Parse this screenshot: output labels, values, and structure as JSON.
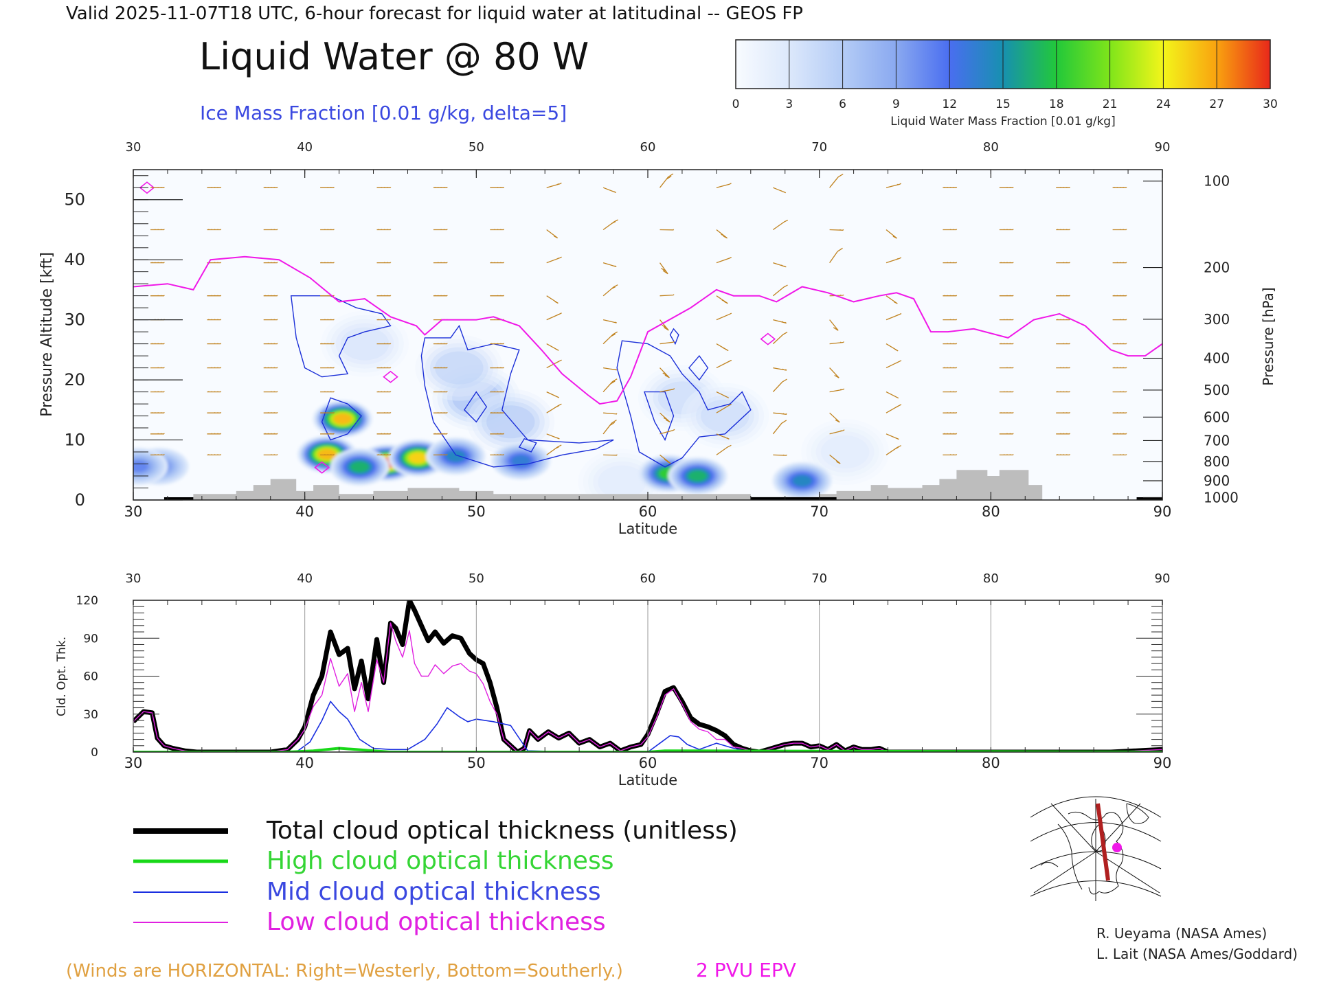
{
  "header": {
    "valid_line": "Valid 2025-11-07T18 UTC, 6-hour forecast for liquid water at latitudinal -- GEOS FP",
    "main_title": "Liquid Water @ 80 W",
    "ice_label": "Ice Mass Fraction [0.01 g/kg, delta=5]"
  },
  "colorbar": {
    "ticks": [
      "0",
      "3",
      "6",
      "9",
      "12",
      "15",
      "18",
      "21",
      "24",
      "27",
      "30"
    ],
    "label": "Liquid Water Mass Fraction [0.01 g/kg]",
    "stops": [
      "#f8fbff",
      "#dce8fb",
      "#b4ccf6",
      "#8aa9f0",
      "#4a6ef0",
      "#1790b0",
      "#22c83a",
      "#7fe51a",
      "#f3f51a",
      "#f9a20f",
      "#e8281a"
    ]
  },
  "colors": {
    "wind_barb": "#c0821e",
    "epv": "#f018e8",
    "ice_contour": "#1b2fd8",
    "topography": "#bdbdbd",
    "total": "#000000",
    "high": "#18d818",
    "mid": "#1a2fe0",
    "low": "#e020e0"
  },
  "chart_data": [
    {
      "type": "heatmap",
      "title": "Liquid Water @ 80 W",
      "xlabel": "Latitude",
      "ylabel": "Pressure Altitude [kft]",
      "ylabel_right": "Pressure [hPa]",
      "xlim": [
        30,
        90
      ],
      "ylim": [
        0,
        55
      ],
      "x_ticks": [
        "30",
        "40",
        "50",
        "60",
        "70",
        "80",
        "90"
      ],
      "y_ticks": [
        "0",
        "10",
        "20",
        "30",
        "40",
        "50"
      ],
      "pressure_ticks": [
        {
          "label": "100",
          "kft": 53.1
        },
        {
          "label": "200",
          "kft": 38.7
        },
        {
          "label": "300",
          "kft": 30.1
        },
        {
          "label": "400",
          "kft": 23.6
        },
        {
          "label": "500",
          "kft": 18.3
        },
        {
          "label": "600",
          "kft": 13.8
        },
        {
          "label": "700",
          "kft": 9.9
        },
        {
          "label": "800",
          "kft": 6.4
        },
        {
          "label": "900",
          "kft": 3.2
        },
        {
          "label": "1000",
          "kft": 0.4
        }
      ],
      "liquid_water_blobs": [
        {
          "lat": 41.3,
          "kft": 7.6,
          "peak": 27
        },
        {
          "lat": 42.2,
          "kft": 13.5,
          "peak": 27
        },
        {
          "lat": 44.8,
          "kft": 6.2,
          "peak": 30
        },
        {
          "lat": 46.6,
          "kft": 7.0,
          "peak": 26
        },
        {
          "lat": 43.2,
          "kft": 5.5,
          "peak": 16
        },
        {
          "lat": 48.8,
          "kft": 7.3,
          "peak": 13
        },
        {
          "lat": 52.6,
          "kft": 6.5,
          "peak": 12
        },
        {
          "lat": 61.2,
          "kft": 4.4,
          "peak": 18
        },
        {
          "lat": 62.9,
          "kft": 4.0,
          "peak": 16
        },
        {
          "lat": 69.0,
          "kft": 3.2,
          "peak": 13
        },
        {
          "lat": 31.5,
          "kft": 5.6,
          "peak": 9
        },
        {
          "lat": 30.3,
          "kft": 5.6,
          "peak": 9
        }
      ],
      "ice_blobs": [
        {
          "lat": 50.0,
          "kft": 17.0,
          "peak": 8
        },
        {
          "lat": 52.0,
          "kft": 13.0,
          "peak": 7
        },
        {
          "lat": 49.0,
          "kft": 22.0,
          "peak": 6
        },
        {
          "lat": 43.5,
          "kft": 26.0,
          "peak": 4
        },
        {
          "lat": 62.0,
          "kft": 17.0,
          "peak": 5
        },
        {
          "lat": 64.5,
          "kft": 14.0,
          "peak": 5
        },
        {
          "lat": 71.5,
          "kft": 8.0,
          "peak": 3
        },
        {
          "lat": 58.5,
          "kft": 3.0,
          "peak": 3
        }
      ],
      "epv_2pvu_kft": [
        [
          30,
          35.5
        ],
        [
          32,
          36
        ],
        [
          33.5,
          35
        ],
        [
          34.5,
          40
        ],
        [
          36.5,
          40.5
        ],
        [
          38.5,
          40
        ],
        [
          40.3,
          37
        ],
        [
          42,
          33
        ],
        [
          43.5,
          33.5
        ],
        [
          45,
          30.5
        ],
        [
          46.5,
          29
        ],
        [
          47,
          27.5
        ],
        [
          48,
          30
        ],
        [
          50,
          30
        ],
        [
          51,
          30.5
        ],
        [
          52.5,
          29
        ],
        [
          53.8,
          25
        ],
        [
          55,
          21
        ],
        [
          56.5,
          17.5
        ],
        [
          57.2,
          16
        ],
        [
          58.2,
          16.5
        ],
        [
          59,
          20.5
        ],
        [
          60,
          28
        ],
        [
          62.5,
          32
        ],
        [
          64,
          35
        ],
        [
          65,
          34
        ],
        [
          66.5,
          34
        ],
        [
          67.5,
          33
        ],
        [
          69,
          35.5
        ],
        [
          70.5,
          34.5
        ],
        [
          72,
          33
        ],
        [
          73.5,
          34
        ],
        [
          74.5,
          34.5
        ],
        [
          75.5,
          33.5
        ],
        [
          76.5,
          28
        ],
        [
          77.5,
          28
        ],
        [
          79,
          28.5
        ],
        [
          81,
          27
        ],
        [
          82.5,
          30
        ],
        [
          84,
          31
        ],
        [
          85.5,
          29
        ],
        [
          87,
          25
        ],
        [
          88,
          24
        ],
        [
          89,
          24
        ],
        [
          90,
          26
        ]
      ],
      "topography_kft": [
        [
          30,
          0
        ],
        [
          33.5,
          0
        ],
        [
          33.5,
          1
        ],
        [
          36,
          1
        ],
        [
          36,
          1.5
        ],
        [
          37,
          1.5
        ],
        [
          37,
          2.5
        ],
        [
          38,
          2.5
        ],
        [
          38,
          3.5
        ],
        [
          39.5,
          3.5
        ],
        [
          39.5,
          1.5
        ],
        [
          40.5,
          1.5
        ],
        [
          40.5,
          2.5
        ],
        [
          42,
          2.5
        ],
        [
          42,
          1
        ],
        [
          44,
          1
        ],
        [
          44,
          1.5
        ],
        [
          46,
          1.5
        ],
        [
          46,
          2
        ],
        [
          49,
          2
        ],
        [
          49,
          1.5
        ],
        [
          51,
          1.5
        ],
        [
          51,
          1
        ],
        [
          66,
          1
        ],
        [
          66,
          0.5
        ],
        [
          70,
          0.5
        ],
        [
          70,
          1
        ],
        [
          71,
          1
        ],
        [
          71,
          1.5
        ],
        [
          73,
          1.5
        ],
        [
          73,
          2.5
        ],
        [
          74,
          2.5
        ],
        [
          74,
          2
        ],
        [
          76,
          2
        ],
        [
          76,
          2.5
        ],
        [
          77,
          2.5
        ],
        [
          77,
          3.5
        ],
        [
          78,
          3.5
        ],
        [
          78,
          5
        ],
        [
          79.8,
          5
        ],
        [
          79.8,
          4
        ],
        [
          80.5,
          4
        ],
        [
          80.5,
          5
        ],
        [
          82.2,
          5
        ],
        [
          82.2,
          2.5
        ],
        [
          83,
          2.5
        ],
        [
          83,
          0
        ],
        [
          90,
          0
        ]
      ],
      "surface_black_segments": [
        [
          31.8,
          33.5
        ],
        [
          66,
          71
        ],
        [
          88.5,
          90
        ]
      ],
      "wind_barbs_note": "Winds are HORIZONTAL: Right=Westerly, Bottom=Southerly."
    },
    {
      "type": "line",
      "xlabel": "Latitude",
      "ylabel": "Cld. Opt. Thk.",
      "xlim": [
        30,
        90
      ],
      "ylim": [
        0,
        120
      ],
      "x_ticks": [
        "30",
        "40",
        "50",
        "60",
        "70",
        "80",
        "90"
      ],
      "y_ticks": [
        "0",
        "30",
        "60",
        "90",
        "120"
      ],
      "series": [
        {
          "name": "Total cloud optical thickness (unitless)",
          "x": [
            30,
            30.6,
            31.1,
            31.4,
            31.8,
            32.3,
            33,
            33.7,
            38,
            39,
            39.6,
            40,
            40.5,
            41.0,
            41.5,
            42.0,
            42.5,
            42.9,
            43.3,
            43.7,
            44.2,
            44.6,
            45.0,
            45.3,
            45.7,
            46.1,
            46.4,
            46.8,
            47.2,
            47.6,
            48.1,
            48.6,
            49.1,
            49.6,
            50.0,
            50.4,
            50.8,
            51.2,
            51.6,
            52.0,
            52.4,
            52.8,
            53.1,
            53.6,
            54.2,
            54.8,
            55.4,
            56.0,
            56.6,
            57.2,
            57.8,
            58.4,
            59.0,
            59.6,
            60.0,
            60.5,
            61.0,
            61.5,
            62.0,
            62.5,
            63.0,
            63.5,
            64.0,
            64.5,
            65.0,
            65.5,
            66.0,
            66.5,
            67.0,
            67.5,
            68.0,
            68.5,
            69.0,
            69.5,
            70.0,
            70.5,
            71.0,
            71.5,
            72.0,
            72.5,
            73.0,
            73.5,
            74.0,
            80,
            87,
            90
          ],
          "values": [
            24,
            32,
            31,
            11,
            5,
            3,
            1,
            0,
            0,
            2,
            10,
            20,
            45,
            60,
            95,
            77,
            82,
            50,
            72,
            42,
            89,
            55,
            102,
            98,
            85,
            120,
            112,
            100,
            88,
            95,
            86,
            92,
            90,
            78,
            73,
            70,
            55,
            35,
            10,
            5,
            0,
            3,
            17,
            10,
            16,
            11,
            15,
            7,
            10,
            4,
            7,
            1,
            4,
            6,
            14,
            30,
            48,
            51,
            40,
            27,
            22,
            20,
            17,
            13,
            6,
            3,
            1,
            0,
            2,
            4,
            6,
            7,
            7,
            4,
            5,
            2,
            6,
            1,
            4,
            2,
            2,
            3,
            0,
            0,
            0,
            2
          ],
          "color": "#000000"
        },
        {
          "name": "High cloud optical thickness",
          "x": [
            30,
            39,
            40.5,
            42,
            43,
            44,
            45,
            60,
            61,
            62,
            90
          ],
          "values": [
            0,
            0,
            1,
            3,
            2,
            1,
            0,
            0,
            1,
            1,
            0
          ],
          "color": "#18d818"
        },
        {
          "name": "Mid cloud optical thickness",
          "x": [
            30,
            39.5,
            40.3,
            41.0,
            41.5,
            42.0,
            42.5,
            43.2,
            44.0,
            45,
            46,
            47,
            47.7,
            48.3,
            49,
            49.5,
            50,
            51,
            52,
            53,
            56,
            60,
            60.8,
            61.3,
            61.8,
            62.3,
            63,
            64,
            65,
            66,
            90
          ],
          "values": [
            0,
            0,
            8,
            25,
            40,
            32,
            26,
            10,
            3,
            2,
            2,
            10,
            22,
            35,
            28,
            24,
            26,
            24,
            21,
            1,
            0,
            0,
            8,
            13,
            12,
            6,
            2,
            7,
            3,
            0,
            0
          ],
          "color": "#1a2fe0"
        },
        {
          "name": "Low cloud optical thickness",
          "x": [
            30,
            30.6,
            31.1,
            31.4,
            31.8,
            32.3,
            33,
            33.7,
            38,
            39,
            39.6,
            40,
            40.5,
            41.0,
            41.5,
            42.0,
            42.5,
            42.9,
            43.3,
            43.7,
            44.2,
            44.6,
            45.0,
            45.3,
            45.7,
            46.1,
            46.4,
            46.8,
            47.2,
            47.6,
            48.1,
            48.6,
            49.1,
            49.6,
            50.0,
            50.4,
            50.8,
            51.2,
            51.6,
            52.0,
            52.4,
            52.8,
            53.1,
            53.6,
            54.2,
            54.8,
            55.4,
            56.0,
            56.6,
            57.2,
            57.8,
            58.4,
            59.0,
            59.6,
            60.0,
            60.5,
            61.0,
            61.5,
            62.0,
            62.5,
            63.0,
            63.5,
            64.0,
            64.5,
            65.0,
            65.5,
            66.0,
            66.5,
            67.0,
            67.5,
            68.0,
            68.5,
            69.0,
            69.5,
            70.0,
            70.5,
            71.0,
            71.5,
            72.0,
            72.5,
            73.0,
            73.5,
            74.0,
            80,
            87,
            90
          ],
          "values": [
            24,
            32,
            31,
            11,
            5,
            3,
            1,
            0,
            0,
            2,
            10,
            18,
            36,
            45,
            74,
            52,
            62,
            32,
            55,
            32,
            73,
            55,
            102,
            88,
            75,
            96,
            70,
            60,
            60,
            69,
            62,
            68,
            70,
            64,
            62,
            54,
            40,
            30,
            10,
            5,
            0,
            3,
            17,
            10,
            16,
            11,
            15,
            7,
            10,
            4,
            7,
            1,
            4,
            6,
            12,
            27,
            45,
            50,
            38,
            24,
            18,
            16,
            10,
            10,
            4,
            3,
            1,
            0,
            2,
            4,
            6,
            7,
            7,
            4,
            5,
            2,
            6,
            1,
            4,
            2,
            2,
            3,
            0,
            0,
            0,
            2
          ],
          "color": "#e020e0"
        }
      ]
    }
  ],
  "legend": {
    "total": "Total cloud optical thickness (unitless)",
    "high": "High cloud optical thickness",
    "mid": "Mid cloud optical thickness",
    "low": "Low cloud optical thickness"
  },
  "footer": {
    "winds_note": "(Winds are HORIZONTAL: Right=Westerly, Bottom=Southerly.)",
    "epv_label": "2 PVU EPV",
    "credit1": "R. Ueyama (NASA Ames)",
    "credit2": "L. Lait (NASA Ames/Goddard)"
  },
  "locator_map": {
    "transect_color": "#b02020",
    "marker_color": "#f018e8"
  }
}
